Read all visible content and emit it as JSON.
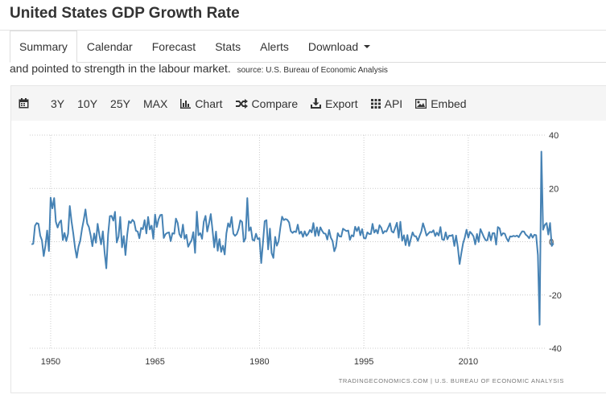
{
  "page": {
    "title": "United States GDP Growth Rate"
  },
  "tabs": [
    {
      "label": "Summary",
      "active": true
    },
    {
      "label": "Calendar"
    },
    {
      "label": "Forecast"
    },
    {
      "label": "Stats"
    },
    {
      "label": "Alerts"
    },
    {
      "label": "Download"
    }
  ],
  "description": {
    "text": "and pointed to strength in the labour market.",
    "source": "source: U.S. Bureau of Economic Analysis"
  },
  "toolbar": {
    "calendar_icon": "calendar-icon",
    "ranges": [
      "3Y",
      "10Y",
      "25Y",
      "MAX"
    ],
    "chart_label": "Chart",
    "compare_label": "Compare",
    "export_label": "Export",
    "api_label": "API",
    "embed_label": "Embed"
  },
  "colors": {
    "line": "#4682b4",
    "grid": "#cccccc",
    "toolbar_bg": "#f5f5f5"
  },
  "credit": "TRADINGECONOMICS.COM | U.S. BUREAU OF ECONOMIC ANALYSIS",
  "chart_data": {
    "type": "line",
    "title": "",
    "xlabel": "",
    "ylabel": "",
    "y_axis_position": "right",
    "grid": true,
    "xlim": [
      1947.0,
      2021.0
    ],
    "ylim": [
      -40,
      40
    ],
    "x_ticks": [
      1950,
      1965,
      1980,
      1995,
      2010
    ],
    "y_ticks": [
      40,
      20,
      0,
      -20,
      -40
    ],
    "series": [
      {
        "points": [
          [
            1947.25,
            -1
          ],
          [
            1947.5,
            -0.8
          ],
          [
            1947.75,
            6
          ],
          [
            1948.0,
            7
          ],
          [
            1948.25,
            6.7
          ],
          [
            1948.5,
            2.3
          ],
          [
            1948.75,
            0.5
          ],
          [
            1949.0,
            -5.4
          ],
          [
            1949.25,
            -1.4
          ],
          [
            1949.5,
            4.2
          ],
          [
            1949.75,
            -3.5
          ],
          [
            1950.0,
            16.5
          ],
          [
            1950.25,
            12.5
          ],
          [
            1950.5,
            16.4
          ],
          [
            1950.75,
            7.5
          ],
          [
            1951.0,
            5.3
          ],
          [
            1951.25,
            7.2
          ],
          [
            1951.5,
            8
          ],
          [
            1951.75,
            0.6
          ],
          [
            1952.0,
            3.3
          ],
          [
            1952.25,
            0.2
          ],
          [
            1952.5,
            3
          ],
          [
            1952.75,
            13.4
          ],
          [
            1953.0,
            7.6
          ],
          [
            1953.25,
            3
          ],
          [
            1953.5,
            -2.2
          ],
          [
            1953.75,
            -6
          ],
          [
            1954.0,
            -1.9
          ],
          [
            1954.25,
            0.4
          ],
          [
            1954.5,
            4.8
          ],
          [
            1954.75,
            8.1
          ],
          [
            1955.0,
            12.1
          ],
          [
            1955.25,
            6.8
          ],
          [
            1955.5,
            5.5
          ],
          [
            1955.75,
            2.3
          ],
          [
            1956.0,
            -1.7
          ],
          [
            1956.25,
            3.1
          ],
          [
            1956.5,
            -0.4
          ],
          [
            1956.75,
            6.7
          ],
          [
            1957.0,
            2.5
          ],
          [
            1957.25,
            -1
          ],
          [
            1957.5,
            3.9
          ],
          [
            1957.75,
            -4.1
          ],
          [
            1958.0,
            -10.0
          ],
          [
            1958.25,
            2.6
          ],
          [
            1958.5,
            9.6
          ],
          [
            1958.75,
            9.7
          ],
          [
            1959.0,
            7.9
          ],
          [
            1959.25,
            11.2
          ],
          [
            1959.5,
            -0.3
          ],
          [
            1959.75,
            1.9
          ],
          [
            1960.0,
            9.3
          ],
          [
            1960.25,
            -2.1
          ],
          [
            1960.5,
            2.1
          ],
          [
            1960.75,
            -5.0
          ],
          [
            1961.0,
            2.7
          ],
          [
            1961.25,
            7.7
          ],
          [
            1961.5,
            7.0
          ],
          [
            1961.75,
            8.2
          ],
          [
            1962.0,
            7.5
          ],
          [
            1962.25,
            4.1
          ],
          [
            1962.5,
            3.8
          ],
          [
            1962.75,
            1.3
          ],
          [
            1963.0,
            5.2
          ],
          [
            1963.25,
            4.7
          ],
          [
            1963.5,
            8.1
          ],
          [
            1963.75,
            3.1
          ],
          [
            1964.0,
            9.3
          ],
          [
            1964.25,
            4.6
          ],
          [
            1964.5,
            6.0
          ],
          [
            1964.75,
            1.1
          ],
          [
            1965.0,
            10.2
          ],
          [
            1965.25,
            5.5
          ],
          [
            1965.5,
            8.4
          ],
          [
            1965.75,
            10.0
          ],
          [
            1966.0,
            10.1
          ],
          [
            1966.25,
            1.4
          ],
          [
            1966.5,
            2.8
          ],
          [
            1966.75,
            3.3
          ],
          [
            1967.0,
            3.5
          ],
          [
            1967.25,
            0.2
          ],
          [
            1967.5,
            3.2
          ],
          [
            1967.75,
            3.0
          ],
          [
            1968.0,
            8.7
          ],
          [
            1968.25,
            7.0
          ],
          [
            1968.5,
            2.8
          ],
          [
            1968.75,
            1.6
          ],
          [
            1969.0,
            6.4
          ],
          [
            1969.25,
            1.1
          ],
          [
            1969.5,
            2.6
          ],
          [
            1969.75,
            -1.9
          ],
          [
            1970.0,
            -0.6
          ],
          [
            1970.25,
            0.6
          ],
          [
            1970.5,
            3.6
          ],
          [
            1970.75,
            -4.2
          ],
          [
            1971.0,
            11.3
          ],
          [
            1971.25,
            2.4
          ],
          [
            1971.5,
            3.2
          ],
          [
            1971.75,
            1.1
          ],
          [
            1972.0,
            7.5
          ],
          [
            1972.25,
            9.7
          ],
          [
            1972.5,
            3.8
          ],
          [
            1972.75,
            6.8
          ],
          [
            1973.0,
            10.4
          ],
          [
            1973.25,
            4.6
          ],
          [
            1973.5,
            -2.1
          ],
          [
            1973.75,
            3.8
          ],
          [
            1974.0,
            -3.4
          ],
          [
            1974.25,
            1.0
          ],
          [
            1974.5,
            -3.8
          ],
          [
            1974.75,
            -1.5
          ],
          [
            1975.0,
            -4.8
          ],
          [
            1975.25,
            3.1
          ],
          [
            1975.5,
            6.9
          ],
          [
            1975.75,
            5.5
          ],
          [
            1976.0,
            9.3
          ],
          [
            1976.25,
            3.0
          ],
          [
            1976.5,
            2.2
          ],
          [
            1976.75,
            2.9
          ],
          [
            1977.0,
            4.8
          ],
          [
            1977.25,
            8.0
          ],
          [
            1977.5,
            7.4
          ],
          [
            1977.75,
            0.0
          ],
          [
            1978.0,
            1.3
          ],
          [
            1978.25,
            16.4
          ],
          [
            1978.5,
            4.1
          ],
          [
            1978.75,
            5.4
          ],
          [
            1979.0,
            0.7
          ],
          [
            1979.25,
            0.4
          ],
          [
            1979.5,
            3.0
          ],
          [
            1979.75,
            1.0
          ],
          [
            1980.0,
            1.3
          ],
          [
            1980.25,
            -8.0
          ],
          [
            1980.5,
            -0.5
          ],
          [
            1980.75,
            7.7
          ],
          [
            1981.0,
            8.1
          ],
          [
            1981.25,
            -2.9
          ],
          [
            1981.5,
            4.9
          ],
          [
            1981.75,
            -4.3
          ],
          [
            1982.0,
            -6.1
          ],
          [
            1982.25,
            1.8
          ],
          [
            1982.5,
            -1.5
          ],
          [
            1982.75,
            0.2
          ],
          [
            1983.0,
            5.4
          ],
          [
            1983.25,
            9.4
          ],
          [
            1983.5,
            8.1
          ],
          [
            1983.75,
            8.5
          ],
          [
            1984.0,
            8.2
          ],
          [
            1984.25,
            7.2
          ],
          [
            1984.5,
            4.0
          ],
          [
            1984.75,
            3.3
          ],
          [
            1985.0,
            3.9
          ],
          [
            1985.25,
            3.6
          ],
          [
            1985.5,
            6.4
          ],
          [
            1985.75,
            3.0
          ],
          [
            1986.0,
            3.8
          ],
          [
            1986.25,
            1.8
          ],
          [
            1986.5,
            3.9
          ],
          [
            1986.75,
            2.2
          ],
          [
            1987.0,
            3.0
          ],
          [
            1987.25,
            4.4
          ],
          [
            1987.5,
            3.5
          ],
          [
            1987.75,
            7.0
          ],
          [
            1988.0,
            2.1
          ],
          [
            1988.25,
            5.4
          ],
          [
            1988.5,
            2.3
          ],
          [
            1988.75,
            5.4
          ],
          [
            1989.0,
            4.1
          ],
          [
            1989.25,
            3.1
          ],
          [
            1989.5,
            3.0
          ],
          [
            1989.75,
            0.8
          ],
          [
            1990.0,
            4.4
          ],
          [
            1990.25,
            1.5
          ],
          [
            1990.5,
            0.3
          ],
          [
            1990.75,
            -3.6
          ],
          [
            1991.0,
            -1.9
          ],
          [
            1991.25,
            3.2
          ],
          [
            1991.5,
            2.0
          ],
          [
            1991.75,
            1.9
          ],
          [
            1992.0,
            4.9
          ],
          [
            1992.25,
            4.4
          ],
          [
            1992.5,
            4.0
          ],
          [
            1992.75,
            4.2
          ],
          [
            1993.0,
            0.7
          ],
          [
            1993.25,
            2.4
          ],
          [
            1993.5,
            2.0
          ],
          [
            1993.75,
            5.6
          ],
          [
            1994.0,
            4.0
          ],
          [
            1994.25,
            5.5
          ],
          [
            1994.5,
            2.4
          ],
          [
            1994.75,
            4.7
          ],
          [
            1995.0,
            1.4
          ],
          [
            1995.25,
            1.2
          ],
          [
            1995.5,
            3.5
          ],
          [
            1995.75,
            2.9
          ],
          [
            1996.0,
            2.9
          ],
          [
            1996.25,
            6.7
          ],
          [
            1996.5,
            3.4
          ],
          [
            1996.75,
            4.5
          ],
          [
            1997.0,
            3.1
          ],
          [
            1997.25,
            6.2
          ],
          [
            1997.5,
            5.2
          ],
          [
            1997.75,
            3.1
          ],
          [
            1998.0,
            4.0
          ],
          [
            1998.25,
            3.8
          ],
          [
            1998.5,
            5.3
          ],
          [
            1998.75,
            6.9
          ],
          [
            1999.0,
            3.9
          ],
          [
            1999.25,
            3.4
          ],
          [
            1999.5,
            5.3
          ],
          [
            1999.75,
            7.1
          ],
          [
            2000.0,
            1.5
          ],
          [
            2000.25,
            7.5
          ],
          [
            2000.5,
            0.4
          ],
          [
            2000.75,
            2.4
          ],
          [
            2001.0,
            -1.3
          ],
          [
            2001.25,
            2.5
          ],
          [
            2001.5,
            -1.6
          ],
          [
            2001.75,
            1.1
          ],
          [
            2002.0,
            3.5
          ],
          [
            2002.25,
            2.1
          ],
          [
            2002.5,
            2.0
          ],
          [
            2002.75,
            0.3
          ],
          [
            2003.0,
            2.1
          ],
          [
            2003.25,
            3.8
          ],
          [
            2003.5,
            6.9
          ],
          [
            2003.75,
            4.8
          ],
          [
            2004.0,
            2.3
          ],
          [
            2004.25,
            3.0
          ],
          [
            2004.5,
            3.7
          ],
          [
            2004.75,
            3.5
          ],
          [
            2005.0,
            4.3
          ],
          [
            2005.25,
            2.1
          ],
          [
            2005.5,
            3.4
          ],
          [
            2005.75,
            2.3
          ],
          [
            2006.0,
            5.5
          ],
          [
            2006.25,
            0.9
          ],
          [
            2006.5,
            0.6
          ],
          [
            2006.75,
            3.5
          ],
          [
            2007.0,
            0.9
          ],
          [
            2007.25,
            2.3
          ],
          [
            2007.5,
            2.2
          ],
          [
            2007.75,
            2.5
          ],
          [
            2008.0,
            -1.6
          ],
          [
            2008.25,
            2.3
          ],
          [
            2008.5,
            -2.1
          ],
          [
            2008.75,
            -8.4
          ],
          [
            2009.0,
            -4.4
          ],
          [
            2009.25,
            -0.6
          ],
          [
            2009.5,
            1.5
          ],
          [
            2009.75,
            4.5
          ],
          [
            2010.0,
            1.5
          ],
          [
            2010.25,
            3.7
          ],
          [
            2010.5,
            3.0
          ],
          [
            2010.75,
            2.0
          ],
          [
            2011.0,
            -1.0
          ],
          [
            2011.25,
            2.9
          ],
          [
            2011.5,
            -0.1
          ],
          [
            2011.75,
            4.7
          ],
          [
            2012.0,
            3.2
          ],
          [
            2012.25,
            1.7
          ],
          [
            2012.5,
            0.5
          ],
          [
            2012.75,
            0.5
          ],
          [
            2013.0,
            3.6
          ],
          [
            2013.25,
            0.5
          ],
          [
            2013.5,
            3.2
          ],
          [
            2013.75,
            3.2
          ],
          [
            2014.0,
            -1.1
          ],
          [
            2014.25,
            5.5
          ],
          [
            2014.5,
            5.0
          ],
          [
            2014.75,
            2.3
          ],
          [
            2015.0,
            3.2
          ],
          [
            2015.25,
            3.0
          ],
          [
            2015.5,
            1.3
          ],
          [
            2015.75,
            0.1
          ],
          [
            2016.0,
            2.0
          ],
          [
            2016.25,
            1.9
          ],
          [
            2016.5,
            2.2
          ],
          [
            2016.75,
            2.0
          ],
          [
            2017.0,
            2.3
          ],
          [
            2017.25,
            1.7
          ],
          [
            2017.5,
            2.9
          ],
          [
            2017.75,
            3.9
          ],
          [
            2018.0,
            3.8
          ],
          [
            2018.25,
            2.7
          ],
          [
            2018.5,
            2.1
          ],
          [
            2018.75,
            1.3
          ],
          [
            2019.0,
            2.9
          ],
          [
            2019.25,
            1.5
          ],
          [
            2019.5,
            2.6
          ],
          [
            2019.75,
            2.4
          ],
          [
            2020.0,
            -5.0
          ],
          [
            2020.25,
            -31.2
          ],
          [
            2020.5,
            33.8
          ],
          [
            2020.75,
            4.5
          ],
          [
            2021.0,
            6.3
          ],
          [
            2021.25,
            7.0
          ],
          [
            2021.5,
            2.7
          ],
          [
            2021.75,
            7.0
          ],
          [
            2022.0,
            -1.6
          ],
          [
            2022.25,
            -0.6
          ]
        ]
      }
    ]
  }
}
